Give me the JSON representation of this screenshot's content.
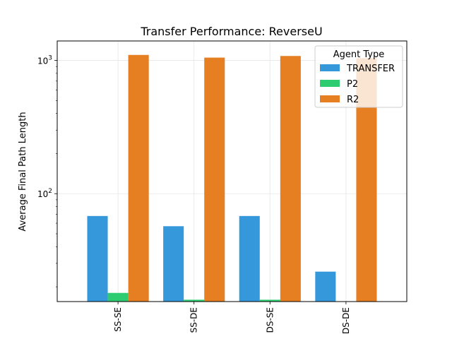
{
  "chart_data": {
    "type": "bar",
    "title": "Transfer Performance: ReverseU",
    "xlabel": "",
    "ylabel": "Average Final Path Length",
    "yscale": "log",
    "ylim": [
      15.5,
      1400
    ],
    "grid": true,
    "categories": [
      "SS-SE",
      "SS-DE",
      "DS-SE",
      "DS-DE"
    ],
    "y_ticks": [
      {
        "value": 100,
        "base": "10",
        "exp": "2"
      },
      {
        "value": 1000,
        "base": "10",
        "exp": "3"
      }
    ],
    "legend": {
      "title": "Agent Type",
      "placement": "upper right"
    },
    "series": [
      {
        "name": "TRANSFER",
        "color": "#3498db",
        "values": [
          68,
          57,
          68,
          26
        ]
      },
      {
        "name": "P2",
        "color": "#2ecc71",
        "values": [
          18,
          16,
          16,
          14
        ]
      },
      {
        "name": "R2",
        "color": "#e67e22",
        "values": [
          1100,
          1050,
          1080,
          1040
        ]
      }
    ]
  }
}
